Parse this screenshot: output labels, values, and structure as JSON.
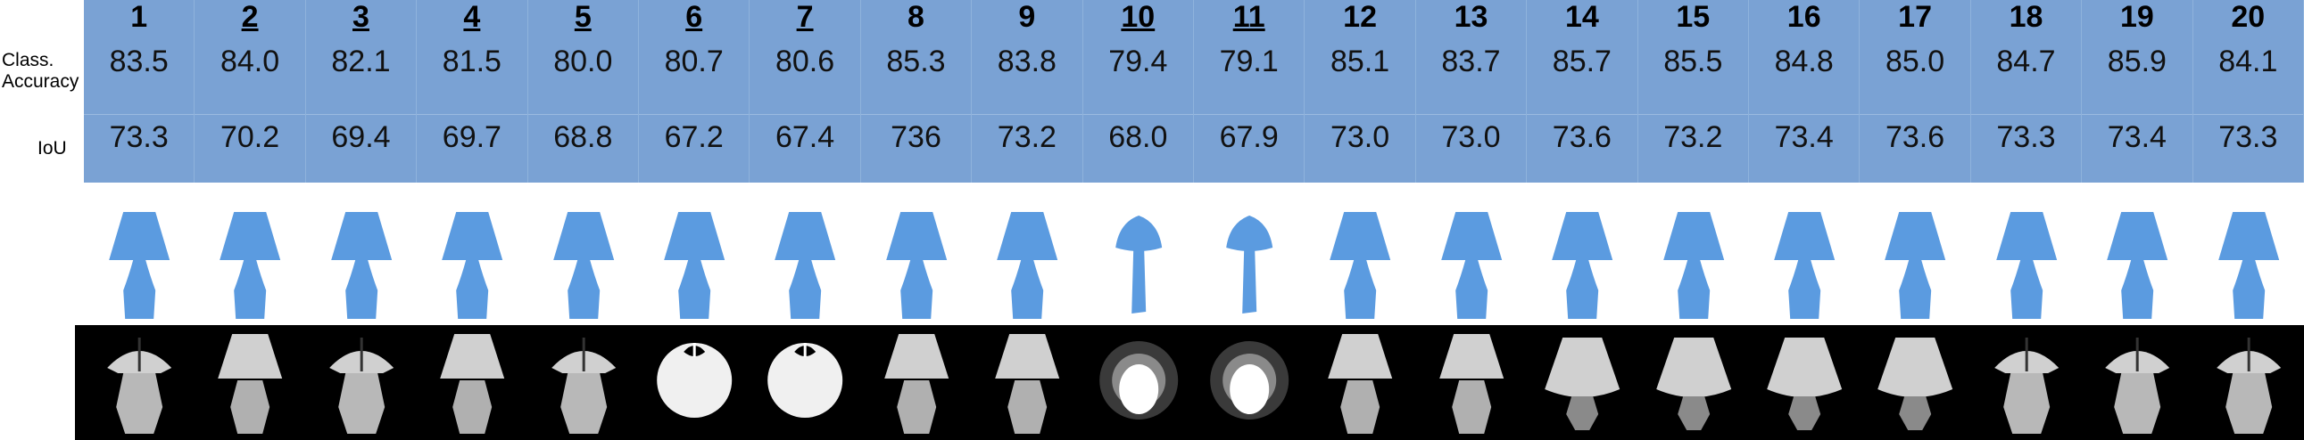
{
  "row_labels": {
    "accuracy_line1": "Class.",
    "accuracy_line2": "Accuracy",
    "iou": "IoU"
  },
  "columns": [
    {
      "id": "1",
      "underline": false,
      "accuracy": "83.5",
      "iou": "73.3",
      "render": "top"
    },
    {
      "id": "2",
      "underline": true,
      "accuracy": "84.0",
      "iou": "70.2",
      "render": "side"
    },
    {
      "id": "3",
      "underline": true,
      "accuracy": "82.1",
      "iou": "69.4",
      "render": "top"
    },
    {
      "id": "4",
      "underline": true,
      "accuracy": "81.5",
      "iou": "69.7",
      "render": "side"
    },
    {
      "id": "5",
      "underline": true,
      "accuracy": "80.0",
      "iou": "68.8",
      "render": "top"
    },
    {
      "id": "6",
      "underline": true,
      "accuracy": "80.7",
      "iou": "67.2",
      "render": "under"
    },
    {
      "id": "7",
      "underline": true,
      "accuracy": "80.6",
      "iou": "67.4",
      "render": "under"
    },
    {
      "id": "8",
      "underline": false,
      "accuracy": "85.3",
      "iou": "736",
      "render": "side"
    },
    {
      "id": "9",
      "underline": false,
      "accuracy": "83.8",
      "iou": "73.2",
      "render": "side"
    },
    {
      "id": "10",
      "underline": true,
      "accuracy": "79.4",
      "iou": "68.0",
      "render": "bottom"
    },
    {
      "id": "11",
      "underline": true,
      "accuracy": "79.1",
      "iou": "67.9",
      "render": "bottom"
    },
    {
      "id": "12",
      "underline": false,
      "accuracy": "85.1",
      "iou": "73.0",
      "render": "side"
    },
    {
      "id": "13",
      "underline": false,
      "accuracy": "83.7",
      "iou": "73.0",
      "render": "side"
    },
    {
      "id": "14",
      "underline": false,
      "accuracy": "85.7",
      "iou": "73.6",
      "render": "low"
    },
    {
      "id": "15",
      "underline": false,
      "accuracy": "85.5",
      "iou": "73.2",
      "render": "low"
    },
    {
      "id": "16",
      "underline": false,
      "accuracy": "84.8",
      "iou": "73.4",
      "render": "low"
    },
    {
      "id": "17",
      "underline": false,
      "accuracy": "85.0",
      "iou": "73.6",
      "render": "low"
    },
    {
      "id": "18",
      "underline": false,
      "accuracy": "84.7",
      "iou": "73.3",
      "render": "top"
    },
    {
      "id": "19",
      "underline": false,
      "accuracy": "85.9",
      "iou": "73.4",
      "render": "top"
    },
    {
      "id": "20",
      "underline": false,
      "accuracy": "84.1",
      "iou": "73.3",
      "render": "top"
    }
  ],
  "colors": {
    "table_bg": "#7aa2d4",
    "point_cloud": "#5b9be0",
    "render_bg": "#000000",
    "render_shade": "#d0d0d0"
  }
}
